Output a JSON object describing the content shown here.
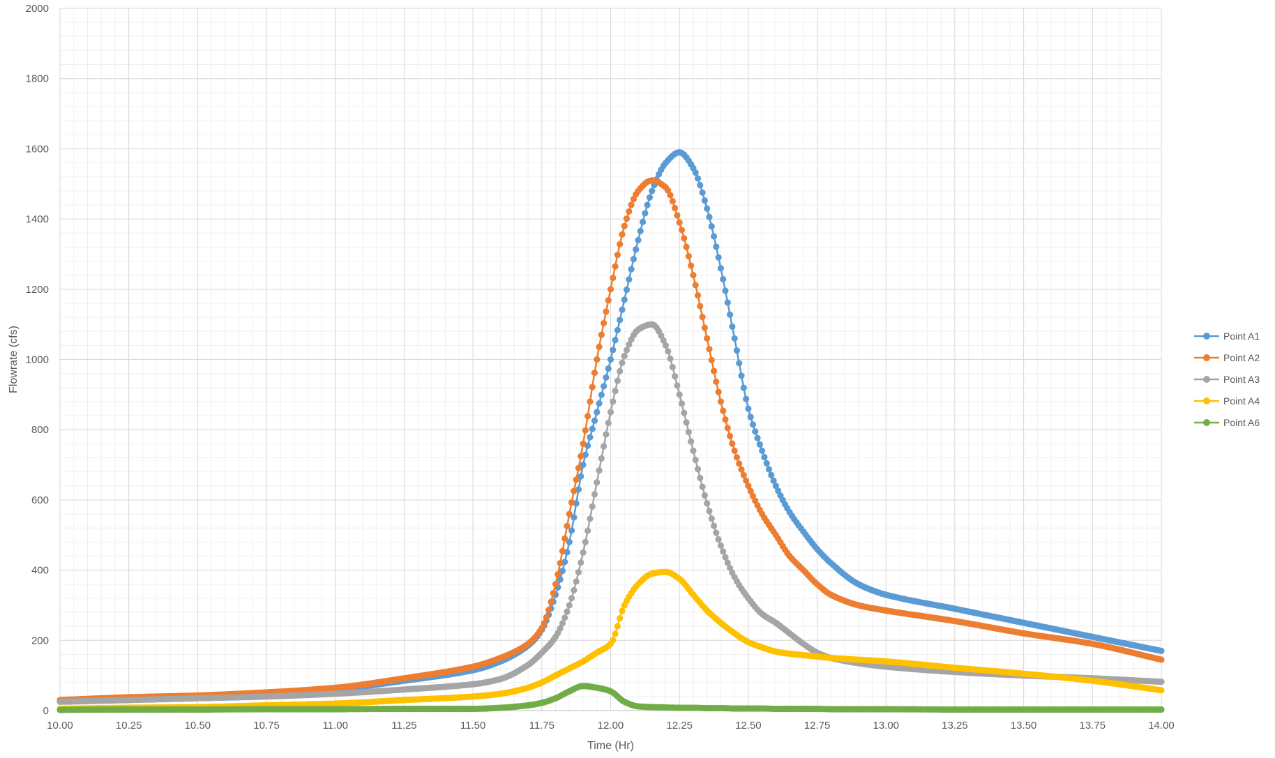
{
  "chart_data": {
    "type": "line",
    "title": "",
    "xlabel": "Time (Hr)",
    "ylabel": "Flowrate (cfs)",
    "xlim": [
      10.0,
      14.0
    ],
    "ylim": [
      0,
      2000
    ],
    "x_ticks": [
      10.0,
      10.25,
      10.5,
      10.75,
      11.0,
      11.25,
      11.5,
      11.75,
      12.0,
      12.25,
      12.5,
      12.75,
      13.0,
      13.25,
      13.5,
      13.75,
      14.0
    ],
    "x_tick_labels": [
      "10.00",
      "10.25",
      "10.50",
      "10.75",
      "11.00",
      "11.25",
      "11.50",
      "11.75",
      "12.00",
      "12.25",
      "12.50",
      "12.75",
      "13.00",
      "13.25",
      "13.50",
      "13.75",
      "14.00"
    ],
    "y_ticks": [
      0,
      200,
      400,
      600,
      800,
      1000,
      1200,
      1400,
      1600,
      1800,
      2000
    ],
    "y_tick_labels": [
      "0",
      "200",
      "400",
      "600",
      "800",
      "1000",
      "1200",
      "1400",
      "1600",
      "1800",
      "2000"
    ],
    "grid": true,
    "legend_position": "right",
    "x": [
      10.0,
      10.25,
      10.5,
      10.75,
      11.0,
      11.25,
      11.5,
      11.6,
      11.7,
      11.75,
      11.8,
      11.85,
      11.9,
      11.95,
      12.0,
      12.05,
      12.1,
      12.15,
      12.2,
      12.25,
      12.3,
      12.35,
      12.4,
      12.45,
      12.5,
      12.55,
      12.6,
      12.65,
      12.7,
      12.75,
      12.8,
      12.9,
      13.0,
      13.25,
      13.5,
      13.75,
      14.0
    ],
    "series": [
      {
        "name": "Point A1",
        "color": "#5B9BD5",
        "values": [
          28,
          35,
          40,
          48,
          60,
          85,
          115,
          140,
          185,
          230,
          330,
          480,
          700,
          850,
          1000,
          1170,
          1340,
          1480,
          1560,
          1590,
          1545,
          1430,
          1260,
          1060,
          860,
          740,
          640,
          565,
          510,
          460,
          420,
          360,
          330,
          290,
          250,
          210,
          170
        ]
      },
      {
        "name": "Point A2",
        "color": "#ED7D31",
        "values": [
          30,
          38,
          43,
          52,
          65,
          92,
          125,
          150,
          190,
          235,
          360,
          560,
          760,
          1000,
          1200,
          1380,
          1480,
          1510,
          1490,
          1390,
          1240,
          1060,
          880,
          740,
          640,
          560,
          500,
          440,
          400,
          360,
          330,
          300,
          285,
          255,
          220,
          190,
          145
        ]
      },
      {
        "name": "Point A3",
        "color": "#A5A5A5",
        "values": [
          25,
          30,
          35,
          40,
          48,
          60,
          75,
          90,
          130,
          165,
          210,
          300,
          450,
          650,
          850,
          1010,
          1085,
          1100,
          1040,
          900,
          740,
          590,
          470,
          380,
          320,
          275,
          250,
          220,
          190,
          165,
          150,
          135,
          125,
          110,
          100,
          92,
          82
        ]
      },
      {
        "name": "Point A4",
        "color": "#FFC000",
        "values": [
          5,
          8,
          10,
          15,
          20,
          30,
          40,
          48,
          65,
          80,
          100,
          120,
          140,
          165,
          190,
          300,
          360,
          390,
          395,
          375,
          330,
          285,
          250,
          220,
          195,
          180,
          168,
          162,
          158,
          154,
          150,
          145,
          140,
          122,
          105,
          85,
          58
        ]
      },
      {
        "name": "Point A6",
        "color": "#70AD47",
        "values": [
          2,
          3,
          3,
          4,
          4,
          5,
          5,
          8,
          15,
          22,
          35,
          55,
          70,
          65,
          55,
          25,
          12,
          10,
          9,
          8,
          8,
          7,
          7,
          6,
          6,
          6,
          5,
          5,
          5,
          5,
          4,
          4,
          4,
          3,
          3,
          3,
          3
        ]
      }
    ]
  }
}
